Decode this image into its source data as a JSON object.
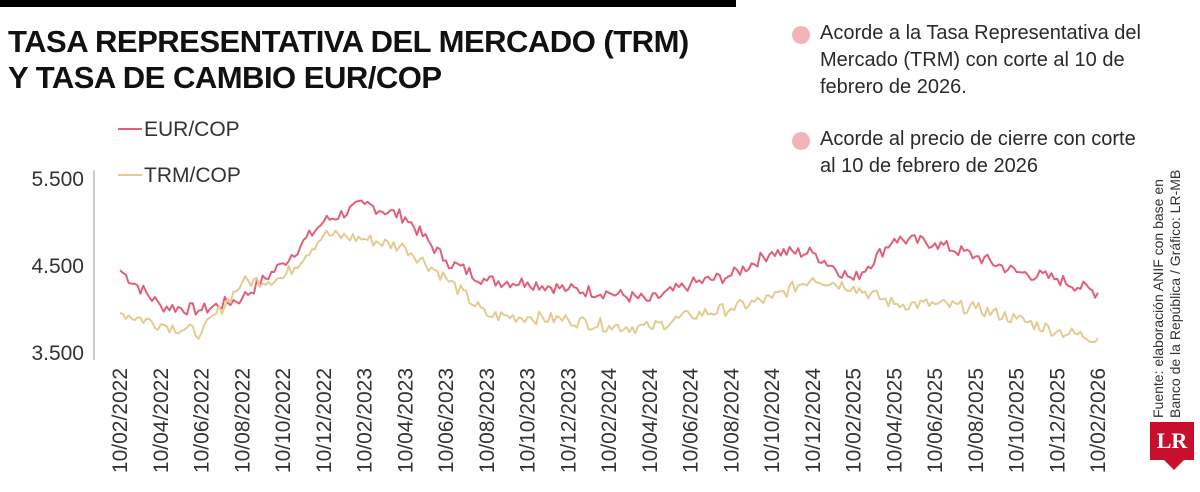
{
  "title_line1": "TASA REPRESENTATIVA DEL MERCADO (TRM)",
  "title_line2": "Y TASA DE CAMBIO EUR/COP",
  "notes": [
    {
      "text": "Acorde a la Tasa Representativa del Mercado (TRM) con corte al 10 de febrero de 2026.",
      "color": "#f2b3b9"
    },
    {
      "text": "Acorde al precio de cierre con corte al 10 de febrero de 2026",
      "color": "#f2b3b9"
    }
  ],
  "source": "Fuente: elaboración ANIF con base en Banco de la República / Gráfico: LR-MB",
  "logo_text": "LR",
  "chart_data": {
    "type": "line",
    "title": "TASA REPRESENTATIVA DEL MERCADO (TRM) Y TASA DE CAMBIO EUR/COP",
    "xlabel": "",
    "ylabel": "",
    "ylim": [
      3500,
      5500
    ],
    "y_ticks": [
      3500,
      4500,
      5500
    ],
    "y_tick_labels": [
      "3.500",
      "4.500",
      "5.500"
    ],
    "grid": false,
    "legend": "top-left",
    "x": [
      "10/02/2022",
      "10/04/2022",
      "10/06/2022",
      "10/08/2022",
      "10/10/2022",
      "10/12/2022",
      "10/02/2023",
      "10/04/2023",
      "10/06/2023",
      "10/08/2023",
      "10/10/2023",
      "10/12/2023",
      "10/02/2024",
      "10/04/2024",
      "10/06/2024",
      "10/08/2024",
      "10/10/2024",
      "10/12/2024",
      "10/02/2025",
      "10/04/2025",
      "10/06/2025",
      "10/08/2025",
      "10/10/2025",
      "10/12/2025",
      "10/02/2026"
    ],
    "series": [
      {
        "name": "EUR/COP",
        "color": "#e0607a",
        "values": [
          4440,
          4030,
          3980,
          4120,
          4520,
          5000,
          5200,
          5050,
          4550,
          4320,
          4300,
          4220,
          4180,
          4090,
          4280,
          4380,
          4650,
          4640,
          4330,
          4800,
          4750,
          4600,
          4420,
          4340,
          4180
        ]
      },
      {
        "name": "TRM/COP",
        "color": "#e2cc92",
        "values": [
          3950,
          3820,
          3720,
          4300,
          4350,
          4850,
          4800,
          4700,
          4350,
          3920,
          3900,
          3870,
          3800,
          3780,
          3920,
          4000,
          4120,
          4350,
          4250,
          4050,
          4050,
          4000,
          3880,
          3740,
          3660
        ]
      }
    ]
  }
}
